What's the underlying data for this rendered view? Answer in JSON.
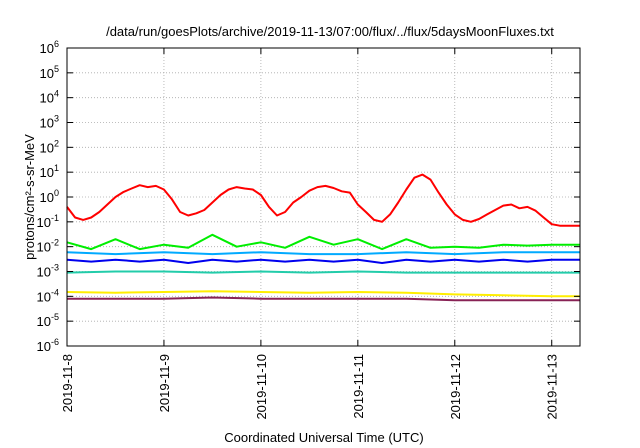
{
  "chart_data": {
    "type": "line",
    "title": "/data/run/goesPlots/archive/2019-11-13/07:00/flux/../flux/5daysMoonFluxes.txt",
    "xlabel": "Coordinated Universal Time (UTC)",
    "ylabel": "protons/cm²-s-sr-MeV",
    "x_scale": "time",
    "y_scale": "log",
    "xlim": [
      "2019-11-08T00:00",
      "2019-11-13T07:00"
    ],
    "ylim": [
      1e-06,
      1000000.0
    ],
    "x_tick_labels": [
      "2019-11-8",
      "2019-11-9",
      "2019-11-10",
      "2019-11-11",
      "2019-11-12",
      "2019-11-13"
    ],
    "y_ticks": [
      {
        "base": "10",
        "exp": "-6"
      },
      {
        "base": "10",
        "exp": "-5"
      },
      {
        "base": "10",
        "exp": "-4"
      },
      {
        "base": "10",
        "exp": "-3"
      },
      {
        "base": "10",
        "exp": "-2"
      },
      {
        "base": "10",
        "exp": "-1"
      },
      {
        "base": "10",
        "exp": "0"
      },
      {
        "base": "10",
        "exp": "1"
      },
      {
        "base": "10",
        "exp": "2"
      },
      {
        "base": "10",
        "exp": "3"
      },
      {
        "base": "10",
        "exp": "4"
      },
      {
        "base": "10",
        "exp": "5"
      },
      {
        "base": "10",
        "exp": "6"
      }
    ],
    "grid": true,
    "series": [
      {
        "color": "#ff0000",
        "points": [
          [
            "2019-11-08T00:00",
            0.4
          ],
          [
            "2019-11-08T02:00",
            0.15
          ],
          [
            "2019-11-08T04:00",
            0.12
          ],
          [
            "2019-11-08T06:00",
            0.15
          ],
          [
            "2019-11-08T08:00",
            0.25
          ],
          [
            "2019-11-08T10:00",
            0.5
          ],
          [
            "2019-11-08T12:00",
            1.0
          ],
          [
            "2019-11-08T14:00",
            1.6
          ],
          [
            "2019-11-08T16:00",
            2.2
          ],
          [
            "2019-11-08T18:00",
            3.0
          ],
          [
            "2019-11-08T20:00",
            2.5
          ],
          [
            "2019-11-08T22:00",
            2.8
          ],
          [
            "2019-11-09T00:00",
            2.0
          ],
          [
            "2019-11-09T02:00",
            0.8
          ],
          [
            "2019-11-09T04:00",
            0.25
          ],
          [
            "2019-11-09T06:00",
            0.18
          ],
          [
            "2019-11-09T08:00",
            0.22
          ],
          [
            "2019-11-09T10:00",
            0.3
          ],
          [
            "2019-11-09T12:00",
            0.6
          ],
          [
            "2019-11-09T14:00",
            1.2
          ],
          [
            "2019-11-09T16:00",
            2.0
          ],
          [
            "2019-11-09T18:00",
            2.5
          ],
          [
            "2019-11-09T20:00",
            2.2
          ],
          [
            "2019-11-09T22:00",
            2.0
          ],
          [
            "2019-11-10T00:00",
            1.2
          ],
          [
            "2019-11-10T02:00",
            0.4
          ],
          [
            "2019-11-10T04:00",
            0.18
          ],
          [
            "2019-11-10T06:00",
            0.25
          ],
          [
            "2019-11-10T08:00",
            0.6
          ],
          [
            "2019-11-10T10:00",
            1.0
          ],
          [
            "2019-11-10T12:00",
            1.8
          ],
          [
            "2019-11-10T14:00",
            2.5
          ],
          [
            "2019-11-10T16:00",
            2.8
          ],
          [
            "2019-11-10T18:00",
            2.3
          ],
          [
            "2019-11-10T20:00",
            1.7
          ],
          [
            "2019-11-10T22:00",
            1.5
          ],
          [
            "2019-11-11T00:00",
            0.5
          ],
          [
            "2019-11-11T02:00",
            0.25
          ],
          [
            "2019-11-11T04:00",
            0.12
          ],
          [
            "2019-11-11T06:00",
            0.1
          ],
          [
            "2019-11-11T08:00",
            0.2
          ],
          [
            "2019-11-11T10:00",
            0.6
          ],
          [
            "2019-11-11T12:00",
            2.0
          ],
          [
            "2019-11-11T14:00",
            6.0
          ],
          [
            "2019-11-11T16:00",
            8.0
          ],
          [
            "2019-11-11T18:00",
            5.0
          ],
          [
            "2019-11-11T20:00",
            1.5
          ],
          [
            "2019-11-11T22:00",
            0.5
          ],
          [
            "2019-11-12T00:00",
            0.2
          ],
          [
            "2019-11-12T02:00",
            0.12
          ],
          [
            "2019-11-12T04:00",
            0.1
          ],
          [
            "2019-11-12T06:00",
            0.13
          ],
          [
            "2019-11-12T08:00",
            0.2
          ],
          [
            "2019-11-12T10:00",
            0.3
          ],
          [
            "2019-11-12T12:00",
            0.45
          ],
          [
            "2019-11-12T14:00",
            0.5
          ],
          [
            "2019-11-12T16:00",
            0.35
          ],
          [
            "2019-11-12T18:00",
            0.4
          ],
          [
            "2019-11-12T20:00",
            0.28
          ],
          [
            "2019-11-12T22:00",
            0.15
          ],
          [
            "2019-11-13T00:00",
            0.08
          ],
          [
            "2019-11-13T02:00",
            0.07
          ],
          [
            "2019-11-13T04:00",
            0.07
          ],
          [
            "2019-11-13T07:00",
            0.07
          ]
        ]
      },
      {
        "color": "#00ee00",
        "points": [
          [
            "2019-11-08T00:00",
            0.015
          ],
          [
            "2019-11-08T06:00",
            0.008
          ],
          [
            "2019-11-08T12:00",
            0.02
          ],
          [
            "2019-11-08T18:00",
            0.008
          ],
          [
            "2019-11-09T00:00",
            0.012
          ],
          [
            "2019-11-09T06:00",
            0.009
          ],
          [
            "2019-11-09T12:00",
            0.03
          ],
          [
            "2019-11-09T18:00",
            0.01
          ],
          [
            "2019-11-10T00:00",
            0.015
          ],
          [
            "2019-11-10T06:00",
            0.009
          ],
          [
            "2019-11-10T12:00",
            0.025
          ],
          [
            "2019-11-10T18:00",
            0.012
          ],
          [
            "2019-11-11T00:00",
            0.02
          ],
          [
            "2019-11-11T06:00",
            0.008
          ],
          [
            "2019-11-11T12:00",
            0.02
          ],
          [
            "2019-11-11T18:00",
            0.009
          ],
          [
            "2019-11-12T00:00",
            0.01
          ],
          [
            "2019-11-12T06:00",
            0.009
          ],
          [
            "2019-11-12T12:00",
            0.012
          ],
          [
            "2019-11-12T18:00",
            0.011
          ],
          [
            "2019-11-13T00:00",
            0.012
          ],
          [
            "2019-11-13T07:00",
            0.012
          ]
        ]
      },
      {
        "color": "#00aaff",
        "points": [
          [
            "2019-11-08T00:00",
            0.006
          ],
          [
            "2019-11-08T12:00",
            0.005
          ],
          [
            "2019-11-09T00:00",
            0.006
          ],
          [
            "2019-11-09T12:00",
            0.005
          ],
          [
            "2019-11-10T00:00",
            0.006
          ],
          [
            "2019-11-10T12:00",
            0.005
          ],
          [
            "2019-11-11T00:00",
            0.005
          ],
          [
            "2019-11-11T12:00",
            0.006
          ],
          [
            "2019-11-12T00:00",
            0.005
          ],
          [
            "2019-11-12T12:00",
            0.006
          ],
          [
            "2019-11-13T00:00",
            0.006
          ],
          [
            "2019-11-13T07:00",
            0.006
          ]
        ]
      },
      {
        "color": "#0000ee",
        "points": [
          [
            "2019-11-08T00:00",
            0.003
          ],
          [
            "2019-11-08T06:00",
            0.0025
          ],
          [
            "2019-11-08T12:00",
            0.003
          ],
          [
            "2019-11-08T18:00",
            0.0025
          ],
          [
            "2019-11-09T00:00",
            0.003
          ],
          [
            "2019-11-09T06:00",
            0.0022
          ],
          [
            "2019-11-09T12:00",
            0.003
          ],
          [
            "2019-11-09T18:00",
            0.0025
          ],
          [
            "2019-11-10T00:00",
            0.003
          ],
          [
            "2019-11-10T06:00",
            0.0025
          ],
          [
            "2019-11-10T12:00",
            0.003
          ],
          [
            "2019-11-10T18:00",
            0.0025
          ],
          [
            "2019-11-11T00:00",
            0.003
          ],
          [
            "2019-11-11T06:00",
            0.0022
          ],
          [
            "2019-11-11T12:00",
            0.003
          ],
          [
            "2019-11-11T18:00",
            0.0025
          ],
          [
            "2019-11-12T00:00",
            0.003
          ],
          [
            "2019-11-12T06:00",
            0.0025
          ],
          [
            "2019-11-12T12:00",
            0.003
          ],
          [
            "2019-11-12T18:00",
            0.0025
          ],
          [
            "2019-11-13T00:00",
            0.003
          ],
          [
            "2019-11-13T07:00",
            0.003
          ]
        ]
      },
      {
        "color": "#22ccaa",
        "points": [
          [
            "2019-11-08T00:00",
            0.0009
          ],
          [
            "2019-11-08T12:00",
            0.001
          ],
          [
            "2019-11-09T00:00",
            0.001
          ],
          [
            "2019-11-09T12:00",
            0.0009
          ],
          [
            "2019-11-10T00:00",
            0.001
          ],
          [
            "2019-11-10T12:00",
            0.0009
          ],
          [
            "2019-11-11T00:00",
            0.001
          ],
          [
            "2019-11-11T12:00",
            0.0009
          ],
          [
            "2019-11-12T00:00",
            0.0009
          ],
          [
            "2019-11-12T12:00",
            0.0009
          ],
          [
            "2019-11-13T00:00",
            0.0009
          ],
          [
            "2019-11-13T07:00",
            0.0009
          ]
        ]
      },
      {
        "color": "#ffee00",
        "points": [
          [
            "2019-11-08T00:00",
            0.00015
          ],
          [
            "2019-11-08T12:00",
            0.00014
          ],
          [
            "2019-11-09T00:00",
            0.00015
          ],
          [
            "2019-11-09T12:00",
            0.00016
          ],
          [
            "2019-11-10T00:00",
            0.00015
          ],
          [
            "2019-11-10T12:00",
            0.00014
          ],
          [
            "2019-11-11T00:00",
            0.00015
          ],
          [
            "2019-11-11T12:00",
            0.00014
          ],
          [
            "2019-11-12T00:00",
            0.00012
          ],
          [
            "2019-11-12T12:00",
            0.00011
          ],
          [
            "2019-11-13T00:00",
            0.0001
          ],
          [
            "2019-11-13T07:00",
            0.0001
          ]
        ]
      },
      {
        "color": "#882255",
        "points": [
          [
            "2019-11-08T00:00",
            8e-05
          ],
          [
            "2019-11-08T12:00",
            8e-05
          ],
          [
            "2019-11-09T00:00",
            8e-05
          ],
          [
            "2019-11-09T12:00",
            9e-05
          ],
          [
            "2019-11-10T00:00",
            8e-05
          ],
          [
            "2019-11-10T12:00",
            8e-05
          ],
          [
            "2019-11-11T00:00",
            8e-05
          ],
          [
            "2019-11-11T12:00",
            8e-05
          ],
          [
            "2019-11-12T00:00",
            7e-05
          ],
          [
            "2019-11-12T12:00",
            7e-05
          ],
          [
            "2019-11-13T00:00",
            7e-05
          ],
          [
            "2019-11-13T07:00",
            7e-05
          ]
        ]
      }
    ]
  }
}
